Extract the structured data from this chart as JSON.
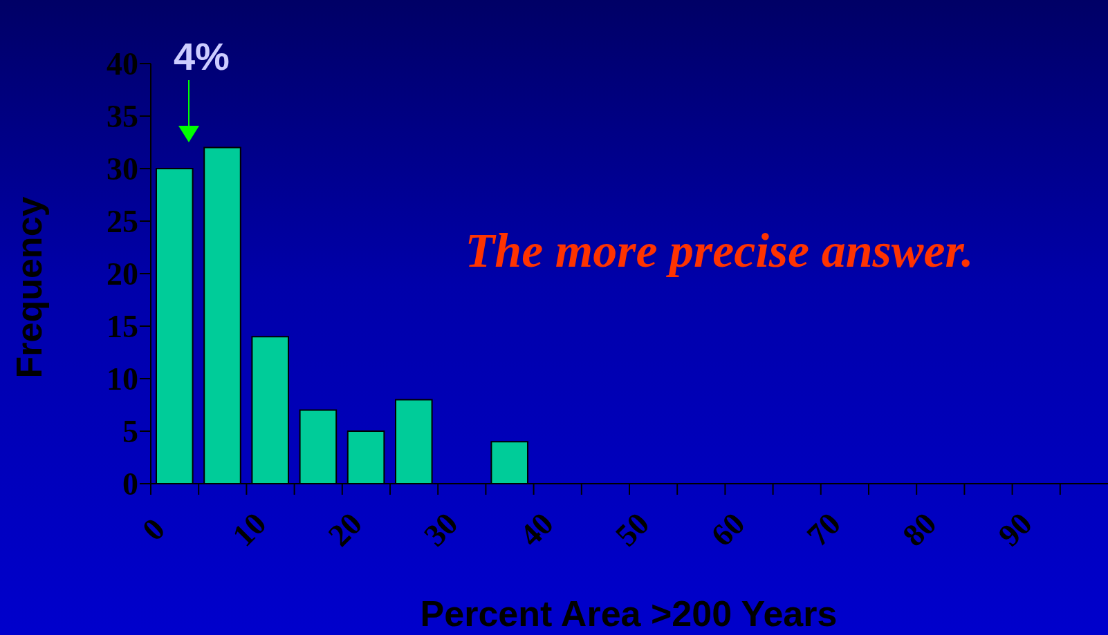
{
  "chart_data": {
    "type": "histogram",
    "xlabel": "Percent Area >200 Years",
    "ylabel": "Frequency",
    "bins": [
      0,
      5,
      10,
      15,
      20,
      25,
      30,
      35,
      40,
      45,
      50,
      55,
      60,
      65,
      70,
      75,
      80,
      85,
      90,
      95,
      100
    ],
    "values": [
      30,
      32,
      14,
      7,
      5,
      8,
      0,
      4,
      0,
      0,
      0,
      0,
      0,
      0,
      0,
      0,
      0,
      0,
      0,
      0
    ],
    "color": "#00cc99",
    "xlim": [
      0,
      100
    ],
    "xticks": [
      0,
      {
        "value": 5,
        "label": null
      },
      10,
      {
        "value": 15,
        "label": null
      },
      20,
      {
        "value": 25,
        "label": null
      },
      30,
      {
        "value": 35,
        "label": null
      },
      40,
      {
        "value": 45,
        "label": null
      },
      50,
      {
        "value": 55,
        "label": null
      },
      60,
      {
        "value": 65,
        "label": null
      },
      70,
      {
        "value": 75,
        "label": null
      },
      80,
      {
        "value": 85,
        "label": null
      },
      90,
      {
        "value": 95,
        "label": null
      }
    ],
    "ylim": [
      0,
      40
    ],
    "yticks": [
      0,
      5,
      10,
      15,
      20,
      25,
      30,
      35,
      40
    ],
    "annotations": [
      "4%",
      "The more precise answer."
    ]
  }
}
